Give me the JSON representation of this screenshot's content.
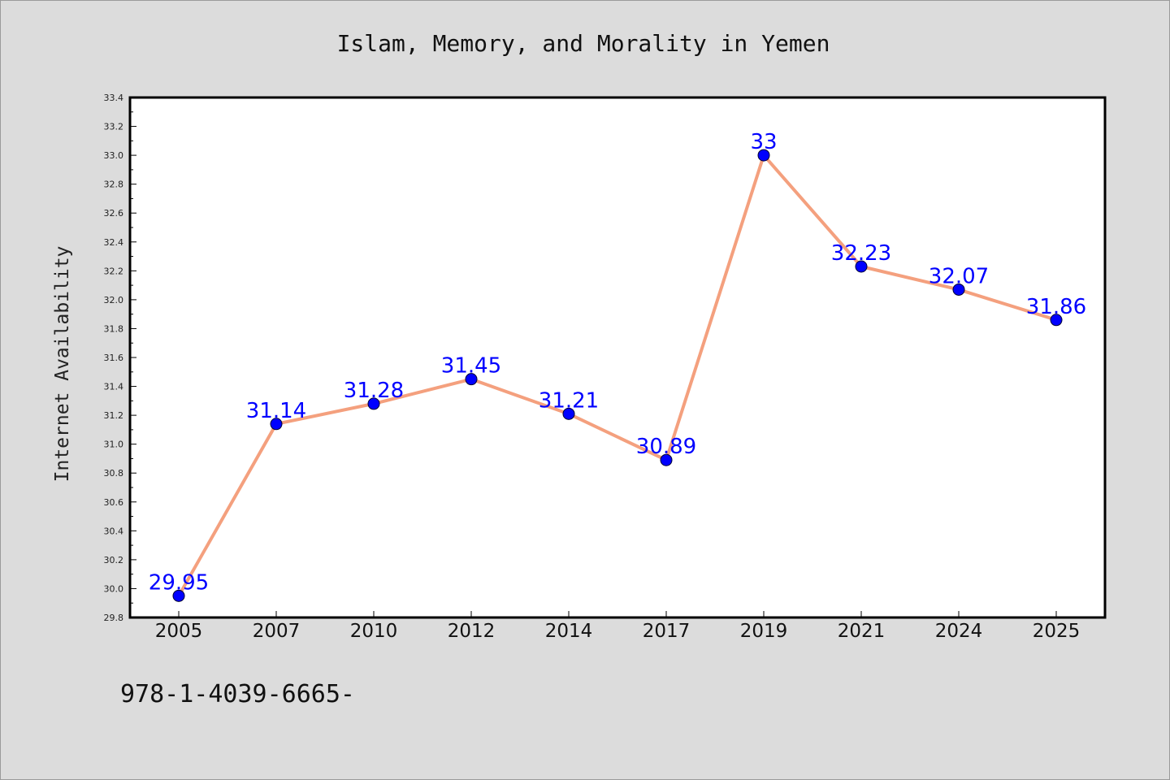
{
  "chart_data": {
    "type": "line",
    "title": "Islam, Memory, and Morality in Yemen",
    "xlabel": "",
    "ylabel": "Internet Availability",
    "categories": [
      "2005",
      "2007",
      "2010",
      "2012",
      "2014",
      "2017",
      "2019",
      "2021",
      "2024",
      "2025"
    ],
    "series": [
      {
        "values": [
          29.95,
          31.14,
          31.28,
          31.45,
          31.21,
          30.89,
          33,
          32.23,
          32.07,
          31.86
        ],
        "data_labels": [
          "29.95",
          "31.14",
          "31.28",
          "31.45",
          "31.21",
          "30.89",
          "33",
          "32.23",
          "32.07",
          "31.86"
        ]
      }
    ],
    "ylim": [
      29.8,
      33.4
    ],
    "yticks": [
      "29.8",
      "30.0",
      "30.2",
      "30.4",
      "30.6",
      "30.8",
      "31.0",
      "31.2",
      "31.4",
      "31.6",
      "31.8",
      "32.0",
      "32.2",
      "32.4",
      "32.6",
      "32.8",
      "33.0",
      "33.2",
      "33.4"
    ],
    "grid": false,
    "legend": "none"
  },
  "annotation": "978-1-4039-6665-",
  "colors": {
    "background": "#dcdcdc",
    "plot_background": "#ffffff",
    "line": "#f4a07e",
    "marker": "#0000ff",
    "data_label": "#0000ff"
  }
}
